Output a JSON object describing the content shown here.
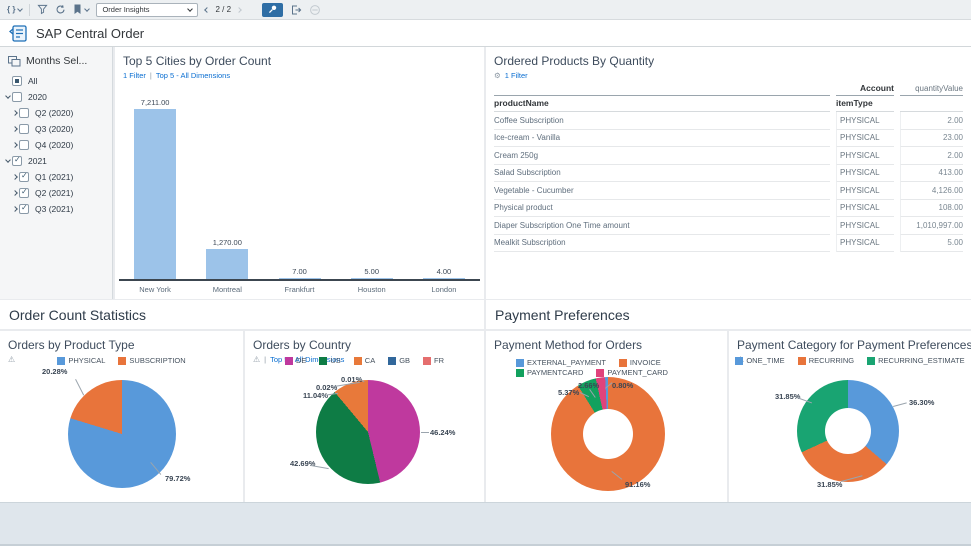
{
  "icons": {
    "warning": "⚠",
    "gear": "⚙",
    "code": "{ }"
  },
  "toolbar": {
    "page_dropdown_value": "Order Insights",
    "pagination": "2 / 2"
  },
  "titlebar": {
    "title": "SAP Central Order"
  },
  "sidebar": {
    "title": "Months Sel...",
    "tree": [
      {
        "label": "All",
        "level": 0,
        "chevron": null,
        "state": "partial"
      },
      {
        "label": "2020",
        "level": 0,
        "chevron": "down",
        "state": "unchecked"
      },
      {
        "label": "Q2 (2020)",
        "level": 1,
        "chevron": "right",
        "state": "unchecked"
      },
      {
        "label": "Q3 (2020)",
        "level": 1,
        "chevron": "right",
        "state": "unchecked"
      },
      {
        "label": "Q4 (2020)",
        "level": 1,
        "chevron": "right",
        "state": "unchecked"
      },
      {
        "label": "2021",
        "level": 0,
        "chevron": "down",
        "state": "checked"
      },
      {
        "label": "Q1 (2021)",
        "level": 1,
        "chevron": "right",
        "state": "checked"
      },
      {
        "label": "Q2 (2021)",
        "level": 1,
        "chevron": "right",
        "state": "checked"
      },
      {
        "label": "Q3 (2021)",
        "level": 1,
        "chevron": "right",
        "state": "checked"
      }
    ]
  },
  "sections": {
    "left": "Order Count Statistics",
    "right": "Payment Preferences"
  },
  "panels": {
    "top_cities": {
      "title": "Top 5 Cities by Order Count",
      "filter": "1 Filter",
      "sep": "|",
      "dims": "Top 5 - All Dimensions"
    },
    "ordered_products": {
      "title": "Ordered Products By Quantity",
      "filter": "1 Filter",
      "col_header": "Account",
      "measure_header": "quantityValue",
      "row_header": "productName",
      "dim_header": "itemType",
      "rows": [
        {
          "product": "Coffee Subscription",
          "type": "PHYSICAL",
          "qty": "2.00"
        },
        {
          "product": "Ice-cream - Vanilla",
          "type": "PHYSICAL",
          "qty": "23.00"
        },
        {
          "product": "Cream 250g",
          "type": "PHYSICAL",
          "qty": "2.00"
        },
        {
          "product": "Salad Subscription",
          "type": "PHYSICAL",
          "qty": "413.00"
        },
        {
          "product": "Vegetable - Cucumber",
          "type": "PHYSICAL",
          "qty": "4,126.00"
        },
        {
          "product": "Physical product",
          "type": "PHYSICAL",
          "qty": "108.00"
        },
        {
          "product": "Diaper Subscription  One Time amount",
          "type": "PHYSICAL",
          "qty": "1,010,997.00"
        },
        {
          "product": "Mealkit Subscription",
          "type": "PHYSICAL",
          "qty": "5.00"
        }
      ]
    },
    "product_type": {
      "title": "Orders by Product Type"
    },
    "country": {
      "title": "Orders by Country",
      "sep": "|",
      "dims": "Top 5 - All Dimensions"
    },
    "payment_method": {
      "title": "Payment Method for Orders"
    },
    "payment_category": {
      "title": "Payment Category for Payment Preferences"
    }
  },
  "chart_data": [
    {
      "type": "bar",
      "title": "Top 5 Cities by Order Count",
      "categories": [
        "New York",
        "Montreal",
        "Frankfurt",
        "Houston",
        "London"
      ],
      "values": [
        7211,
        1270,
        7,
        5,
        4
      ],
      "value_labels": [
        "7,211.00",
        "1,270.00",
        "7.00",
        "5.00",
        "4.00"
      ],
      "bar_color": "#9cc3e9",
      "xlabel": "",
      "ylabel": "",
      "ylim": [
        0,
        7211
      ],
      "grid": false,
      "legend_position": "none"
    },
    {
      "type": "pie",
      "title": "Orders by Product Type",
      "series": [
        {
          "name": "PHYSICAL",
          "value": 79.72,
          "color": "#5899da"
        },
        {
          "name": "SUBSCRIPTION",
          "value": 20.28,
          "color": "#e8743b"
        }
      ],
      "callouts": {
        "physical": "79.72%",
        "subscription": "20.28%"
      },
      "legend_position": "top"
    },
    {
      "type": "pie",
      "title": "Orders by Country",
      "series": [
        {
          "name": "DE",
          "value": 46.24,
          "color": "#bf399e"
        },
        {
          "name": "US",
          "value": 42.69,
          "color": "#0e7c45"
        },
        {
          "name": "CA",
          "value": 11.04,
          "color": "#e8793a"
        },
        {
          "name": "GB",
          "value": 0.02,
          "color": "#31679b"
        },
        {
          "name": "FR",
          "value": 0.01,
          "color": "#e56e6e"
        }
      ],
      "callouts": {
        "de": "46.24%",
        "us": "42.69%",
        "ca": "11.04%",
        "gb": "0.02%",
        "fr": "0.01%"
      },
      "legend_position": "top"
    },
    {
      "type": "donut",
      "title": "Payment Method for Orders",
      "series": [
        {
          "name": "EXTERNAL_PAYMENT",
          "value": 0.8,
          "color": "#5899da"
        },
        {
          "name": "INVOICE",
          "value": 91.16,
          "color": "#e8743b"
        },
        {
          "name": "PAYMENTCARD",
          "value": 5.37,
          "color": "#12a15e"
        },
        {
          "name": "PAYMENT_CARD",
          "value": 2.66,
          "color": "#e0437c"
        }
      ],
      "draw_order": [
        1,
        2,
        3,
        0
      ],
      "callouts": {
        "invoice": "91.16%",
        "paymentcard": "5.37%",
        "payment_card": "2.66%",
        "external_payment": "0.80%"
      },
      "legend_position": "top"
    },
    {
      "type": "donut",
      "title": "Payment Category for Payment Preferences",
      "series": [
        {
          "name": "ONE_TIME",
          "value": 36.3,
          "color": "#5899da"
        },
        {
          "name": "RECURRING",
          "value": 31.85,
          "color": "#e8743b"
        },
        {
          "name": "RECURRING_ESTIMATE",
          "value": 31.85,
          "color": "#19a472"
        }
      ],
      "callouts": {
        "one_time": "36.30%",
        "recurring": "31.85%",
        "recurring_estimate": "31.85%"
      },
      "legend_position": "top"
    }
  ]
}
